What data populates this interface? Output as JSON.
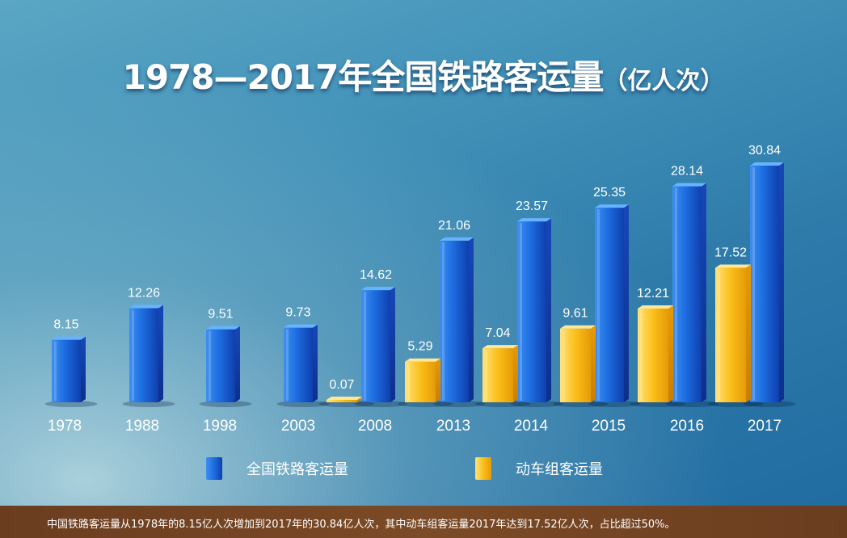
{
  "title": {
    "main": "1978—2017年全国铁路客运量",
    "unit": "（亿人次）"
  },
  "colors": {
    "blue": "#1f63d6",
    "gold": "#f6b80f"
  },
  "chart_data": {
    "type": "bar",
    "categories": [
      "1978",
      "1988",
      "1998",
      "2003",
      "2008",
      "2013",
      "2014",
      "2015",
      "2016",
      "2017"
    ],
    "series": [
      {
        "name": "全国铁路客运量",
        "values": [
          8.15,
          12.26,
          9.51,
          9.73,
          14.62,
          21.06,
          23.57,
          25.35,
          28.14,
          30.84
        ],
        "color": "#1f63d6"
      },
      {
        "name": "动车组客运量",
        "values": [
          null,
          null,
          null,
          null,
          0.07,
          5.29,
          7.04,
          9.61,
          12.21,
          17.52
        ],
        "color": "#f6b80f"
      }
    ],
    "ylim": [
      0,
      30.84
    ],
    "grid": false,
    "legend": "bottom"
  },
  "legend": [
    {
      "label": "全国铁路客运量",
      "icon": "blue-bar-icon"
    },
    {
      "label": "动车组客运量",
      "icon": "gold-bar-icon"
    }
  ],
  "footer": "中国铁路客运量从1978年的8.15亿人次增加到2017年的30.84亿人次，其中动车组客运量2017年达到17.52亿人次，占比超过50%。"
}
